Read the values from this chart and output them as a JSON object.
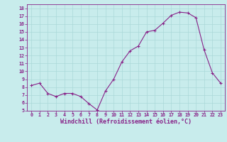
{
  "x": [
    0,
    1,
    2,
    3,
    4,
    5,
    6,
    7,
    8,
    9,
    10,
    11,
    12,
    13,
    14,
    15,
    16,
    17,
    18,
    19,
    20,
    21,
    22,
    23
  ],
  "y": [
    8.2,
    8.5,
    7.2,
    6.8,
    7.2,
    7.2,
    6.8,
    5.9,
    5.1,
    7.5,
    9.0,
    11.2,
    12.6,
    13.2,
    15.0,
    15.2,
    16.1,
    17.1,
    17.5,
    17.4,
    16.8,
    12.7,
    9.8,
    8.5
  ],
  "line_color": "#882288",
  "marker": "+",
  "marker_size": 3,
  "background_color": "#c8ecec",
  "grid_color": "#aad8d8",
  "xlabel": "Windchill (Refroidissement éolien,°C)",
  "xlabel_color": "#882288",
  "ylim": [
    5,
    18
  ],
  "xlim": [
    -0.5,
    23.5
  ],
  "yticks": [
    5,
    6,
    7,
    8,
    9,
    10,
    11,
    12,
    13,
    14,
    15,
    16,
    17,
    18
  ],
  "xticks": [
    0,
    1,
    2,
    3,
    4,
    5,
    6,
    7,
    8,
    9,
    10,
    11,
    12,
    13,
    14,
    15,
    16,
    17,
    18,
    19,
    20,
    21,
    22,
    23
  ],
  "tick_color": "#882288",
  "tick_fontsize": 4.8,
  "xlabel_fontsize": 6.0,
  "spine_color": "#882288",
  "linewidth": 0.8,
  "markeredgewidth": 0.8
}
